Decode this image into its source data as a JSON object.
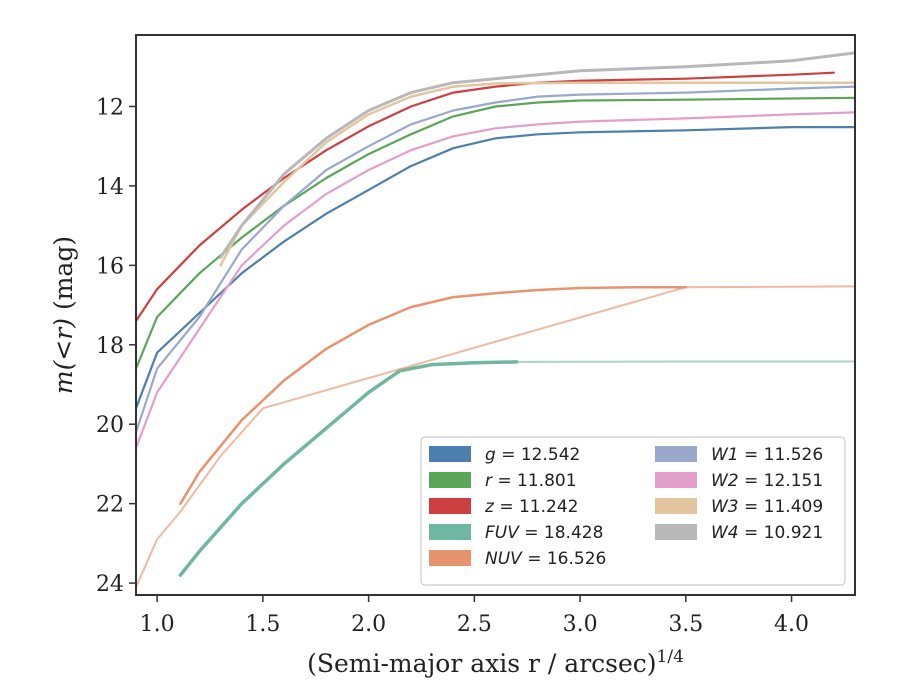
{
  "chart_data": {
    "type": "line",
    "xlabel": "(Semi-major axis r / arcsec)",
    "xlabel_exponent": "1/4",
    "ylabel_prefix": "m(<r)",
    "ylabel_suffix": " (mag)",
    "xlim": [
      0.9,
      4.3
    ],
    "ylim": [
      24.3,
      10.2
    ],
    "y_inverted": true,
    "xticks": [
      1.0,
      1.5,
      2.0,
      2.5,
      3.0,
      3.5,
      4.0
    ],
    "xtick_labels": [
      "1.0",
      "1.5",
      "2.0",
      "2.5",
      "3.0",
      "3.5",
      "4.0"
    ],
    "yticks": [
      12,
      14,
      16,
      18,
      20,
      22,
      24
    ],
    "ytick_labels": [
      "12",
      "14",
      "16",
      "18",
      "20",
      "22",
      "24"
    ],
    "grid": false,
    "legend_position": "lower-right",
    "series": [
      {
        "name": "g",
        "value": "12.542",
        "color": "#4c7fae",
        "width": 2.2,
        "opacity": 1.0,
        "x": [
          0.9,
          1.0,
          1.2,
          1.4,
          1.6,
          1.8,
          2.0,
          2.2,
          2.4,
          2.6,
          2.8,
          3.0,
          3.5,
          4.0,
          4.3
        ],
        "y": [
          19.6,
          18.2,
          17.2,
          16.2,
          15.4,
          14.7,
          14.1,
          13.5,
          13.05,
          12.8,
          12.7,
          12.65,
          12.6,
          12.52,
          12.52
        ]
      },
      {
        "name": "r",
        "value": "11.801",
        "color": "#5aa556",
        "width": 2.2,
        "opacity": 1.0,
        "x": [
          0.9,
          1.0,
          1.2,
          1.4,
          1.6,
          1.8,
          2.0,
          2.2,
          2.4,
          2.6,
          2.8,
          3.0,
          3.5,
          4.0,
          4.3
        ],
        "y": [
          18.6,
          17.3,
          16.2,
          15.3,
          14.5,
          13.8,
          13.2,
          12.7,
          12.25,
          12.0,
          11.9,
          11.85,
          11.83,
          11.8,
          11.78
        ]
      },
      {
        "name": "z",
        "value": "11.242",
        "color": "#cd3f40",
        "width": 2.2,
        "opacity": 1.0,
        "x": [
          0.9,
          1.0,
          1.2,
          1.4,
          1.6,
          1.8,
          2.0,
          2.2,
          2.4,
          2.6,
          2.8,
          3.0,
          3.5,
          4.0,
          4.2
        ],
        "y": [
          17.4,
          16.6,
          15.5,
          14.6,
          13.8,
          13.1,
          12.5,
          12.0,
          11.65,
          11.5,
          11.4,
          11.35,
          11.3,
          11.2,
          11.15
        ]
      },
      {
        "name": "FUV",
        "value": "18.428",
        "color": "#6fb7a0",
        "width": 3.5,
        "opacity": 1.0,
        "x": [
          1.11,
          1.2,
          1.4,
          1.6,
          1.8,
          2.0,
          2.15,
          2.3,
          2.5,
          2.7
        ],
        "y": [
          23.8,
          23.2,
          22.0,
          21.0,
          20.1,
          19.2,
          18.65,
          18.5,
          18.45,
          18.43
        ]
      },
      {
        "name": "FUV_tail",
        "value": "",
        "color": "#6fb7a0",
        "width": 2.0,
        "opacity": 0.6,
        "x": [
          2.7,
          3.5,
          4.3
        ],
        "y": [
          18.43,
          18.42,
          18.42
        ]
      },
      {
        "name": "NUV",
        "value": "16.526",
        "color": "#e8936f",
        "width": 2.5,
        "opacity": 1.0,
        "x": [
          1.11,
          1.2,
          1.4,
          1.6,
          1.8,
          2.0,
          2.2,
          2.4,
          2.6,
          2.8,
          3.0,
          3.3,
          3.5
        ],
        "y": [
          22.0,
          21.2,
          19.9,
          18.9,
          18.1,
          17.5,
          17.05,
          16.8,
          16.7,
          16.62,
          16.57,
          16.55,
          16.55
        ]
      },
      {
        "name": "NUV_tail",
        "value": "",
        "color": "#e8936f",
        "width": 2.0,
        "opacity": 0.65,
        "x": [
          0.9,
          1.0,
          1.11,
          1.3,
          1.5,
          3.5,
          4.3
        ],
        "y": [
          24.1,
          22.9,
          22.2,
          20.8,
          19.6,
          16.55,
          16.53
        ]
      },
      {
        "name": "W1",
        "value": "11.526",
        "color": "#9aa8cc",
        "width": 2.2,
        "opacity": 1.0,
        "x": [
          0.9,
          1.0,
          1.2,
          1.4,
          1.6,
          1.8,
          2.0,
          2.2,
          2.4,
          2.6,
          2.8,
          3.0,
          3.5,
          4.0,
          4.3
        ],
        "y": [
          20.2,
          18.6,
          17.3,
          15.6,
          14.5,
          13.6,
          13.0,
          12.45,
          12.1,
          11.9,
          11.75,
          11.7,
          11.65,
          11.55,
          11.5
        ]
      },
      {
        "name": "W2",
        "value": "12.151",
        "color": "#e39fcc",
        "width": 2.2,
        "opacity": 1.0,
        "x": [
          0.9,
          1.0,
          1.2,
          1.4,
          1.6,
          1.8,
          2.0,
          2.2,
          2.4,
          2.6,
          2.8,
          3.0,
          3.5,
          4.0,
          4.3
        ],
        "y": [
          20.6,
          19.2,
          17.6,
          16.0,
          15.0,
          14.2,
          13.6,
          13.1,
          12.75,
          12.55,
          12.45,
          12.38,
          12.3,
          12.2,
          12.15
        ]
      },
      {
        "name": "W3",
        "value": "11.409",
        "color": "#e3c59f",
        "width": 2.5,
        "opacity": 1.0,
        "x": [
          1.3,
          1.4,
          1.6,
          1.8,
          2.0,
          2.2,
          2.4,
          2.6,
          3.0,
          3.5,
          4.0,
          4.3
        ],
        "y": [
          16.0,
          15.0,
          13.9,
          12.9,
          12.2,
          11.75,
          11.5,
          11.42,
          11.4,
          11.4,
          11.4,
          11.4
        ]
      },
      {
        "name": "W4",
        "value": "10.921",
        "color": "#b8b8b8",
        "width": 3.0,
        "opacity": 1.0,
        "x": [
          1.3,
          1.4,
          1.6,
          1.8,
          2.0,
          2.2,
          2.4,
          2.6,
          2.8,
          3.0,
          3.5,
          4.0,
          4.3
        ],
        "y": [
          15.8,
          15.0,
          13.7,
          12.8,
          12.1,
          11.65,
          11.4,
          11.3,
          11.2,
          11.1,
          11.0,
          10.85,
          10.65
        ]
      }
    ],
    "legend": {
      "col1": [
        {
          "symbol": "g",
          "text": " = 12.542",
          "color": "#4c7fae"
        },
        {
          "symbol": "r",
          "text": " = 11.801",
          "color": "#5aa556"
        },
        {
          "symbol": "z",
          "text": " = 11.242",
          "color": "#cd3f40"
        },
        {
          "symbol": "FUV",
          "text": " = 18.428",
          "color": "#6fb7a0"
        },
        {
          "symbol": "NUV",
          "text": " = 16.526",
          "color": "#e8936f"
        }
      ],
      "col2": [
        {
          "symbol": "W1",
          "text": " = 11.526",
          "color": "#9aa8cc"
        },
        {
          "symbol": "W2",
          "text": " = 12.151",
          "color": "#e39fcc"
        },
        {
          "symbol": "W3",
          "text": " = 11.409",
          "color": "#e3c59f"
        },
        {
          "symbol": "W4",
          "text": " = 10.921",
          "color": "#b8b8b8"
        }
      ]
    }
  }
}
